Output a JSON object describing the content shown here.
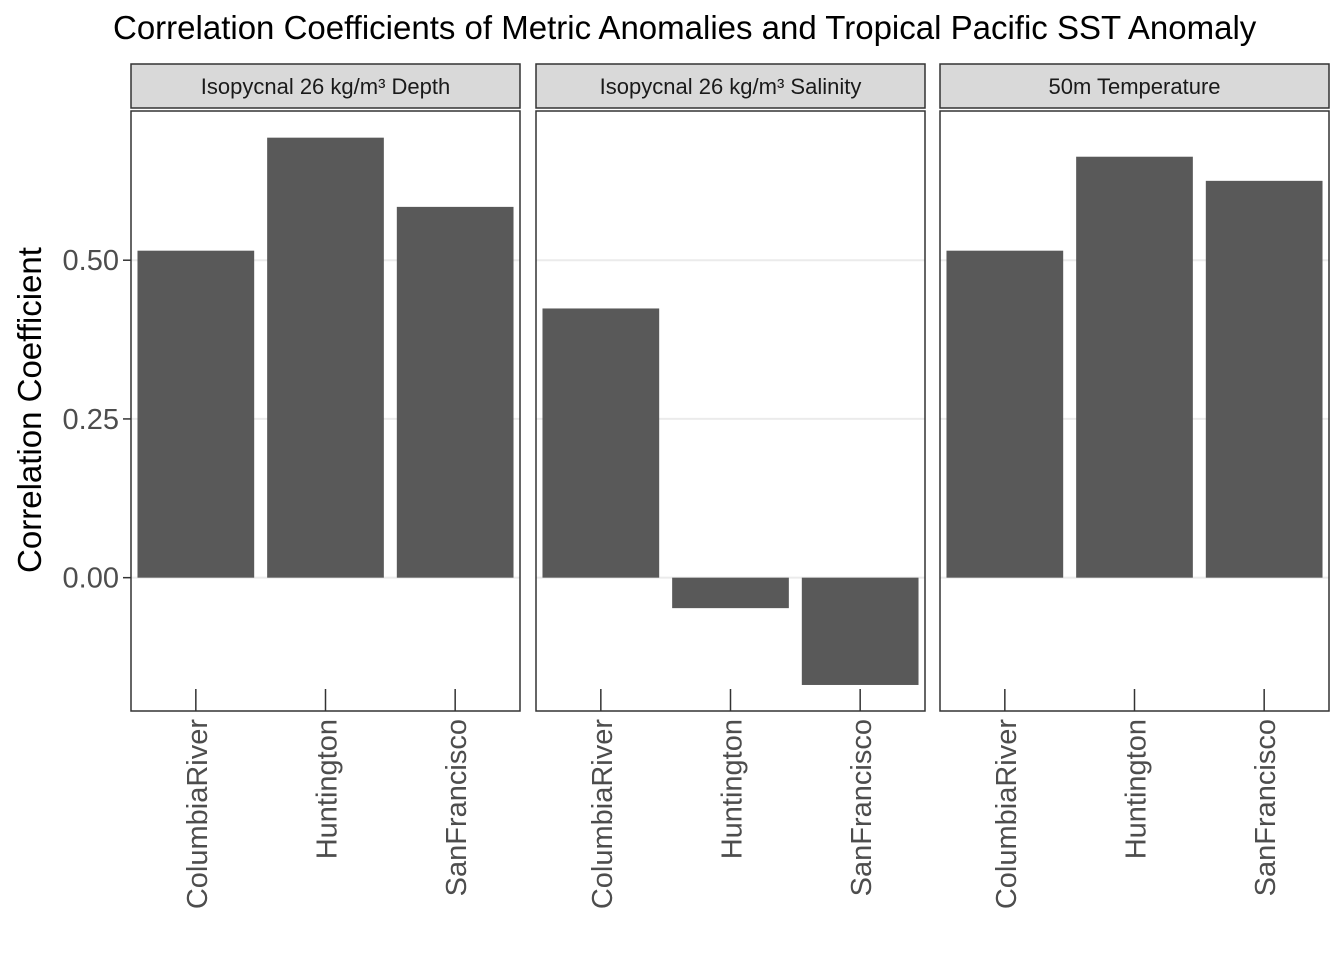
{
  "chart_data": {
    "type": "bar",
    "title": "Correlation Coefficients of Metric Anomalies and Tropical Pacific SST Anomaly",
    "xlabel": "",
    "ylabel": "Correlation Coefficient",
    "ylim": [
      -0.21,
      0.735
    ],
    "yticks": [
      0.0,
      0.25,
      0.5
    ],
    "ytick_labels": [
      "0.00",
      "0.25",
      "0.50"
    ],
    "grid": true,
    "bar_color": "#595959",
    "categories": [
      "ColumbiaRiver",
      "Huntington",
      "SanFrancisco"
    ],
    "panels": [
      {
        "name": "Isopycnal 26 kg/m³ Depth",
        "values": [
          0.515,
          0.693,
          0.584
        ]
      },
      {
        "name": "Isopycnal 26 kg/m³ Salinity",
        "values": [
          0.424,
          -0.048,
          -0.169
        ]
      },
      {
        "name": "50m Temperature",
        "values": [
          0.515,
          0.663,
          0.625
        ]
      }
    ]
  }
}
